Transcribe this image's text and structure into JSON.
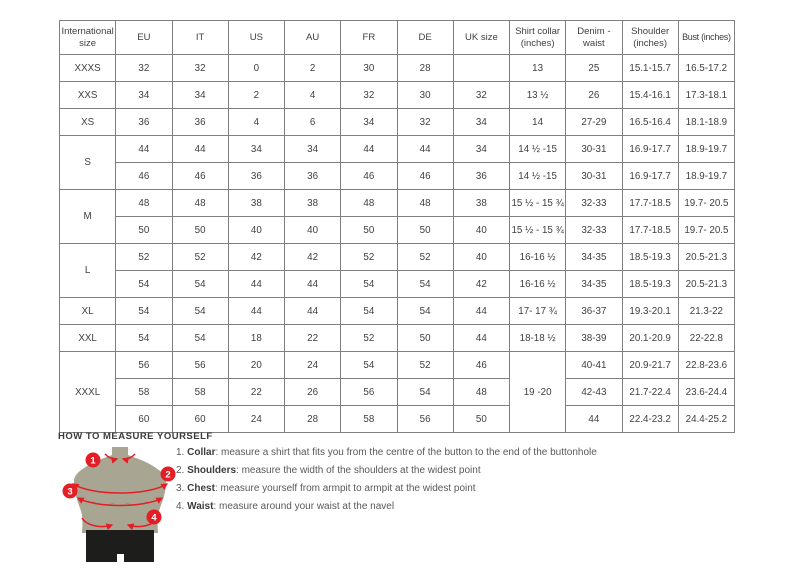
{
  "table": {
    "headers": [
      "International size",
      "EU",
      "IT",
      "US",
      "AU",
      "FR",
      "DE",
      "UK size",
      "Shirt collar (inches)",
      "Denim - waist",
      "Shoulder (inches)",
      "Bust (inches)"
    ],
    "rows": [
      [
        "XXXS",
        "32",
        "32",
        "0",
        "2",
        "30",
        "28",
        "",
        "13",
        "25",
        "15.1-15.7",
        "16.5-17.2"
      ],
      [
        "XXS",
        "34",
        "34",
        "2",
        "4",
        "32",
        "30",
        "32",
        "13 ½",
        "26",
        "15.4-16.1",
        "17.3-18.1"
      ],
      [
        "XS",
        "36",
        "36",
        "4",
        "6",
        "34",
        "32",
        "34",
        "14",
        "27-29",
        "16.5-16.4",
        "18.1-18.9"
      ],
      [
        {
          "text": "S",
          "rowspan": 2
        },
        "44",
        "44",
        "34",
        "34",
        "44",
        "44",
        "34",
        "14 ½ -15",
        "30-31",
        "16.9-17.7",
        "18.9-19.7"
      ],
      [
        "46",
        "46",
        "36",
        "36",
        "46",
        "46",
        "36",
        "14 ½ -15",
        "30-31",
        "16.9-17.7",
        "18.9-19.7"
      ],
      [
        {
          "text": "M",
          "rowspan": 2
        },
        "48",
        "48",
        "38",
        "38",
        "48",
        "48",
        "38",
        "15 ½ - 15 ¾",
        "32-33",
        "17.7-18.5",
        "19.7- 20.5"
      ],
      [
        "50",
        "50",
        "40",
        "40",
        "50",
        "50",
        "40",
        "15 ½ - 15 ¾",
        "32-33",
        "17.7-18.5",
        "19.7- 20.5"
      ],
      [
        {
          "text": "L",
          "rowspan": 2
        },
        "52",
        "52",
        "42",
        "42",
        "52",
        "52",
        "40",
        "16-16 ½",
        "34-35",
        "18.5-19.3",
        "20.5-21.3"
      ],
      [
        "54",
        "54",
        "44",
        "44",
        "54",
        "54",
        "42",
        "16-16 ½",
        "34-35",
        "18.5-19.3",
        "20.5-21.3"
      ],
      [
        "XL",
        "54",
        "54",
        "44",
        "44",
        "54",
        "54",
        "44",
        "17- 17 ¾",
        "36-37",
        "19.3-20.1",
        "21.3-22"
      ],
      [
        "XXL",
        "54",
        "54",
        "18",
        "22",
        "52",
        "50",
        "44",
        "18-18 ½",
        "38-39",
        "20.1-20.9",
        "22-22.8"
      ],
      [
        {
          "text": "XXXL",
          "rowspan": 3
        },
        "56",
        "56",
        "20",
        "24",
        "54",
        "52",
        "46",
        {
          "text": "19 -20",
          "rowspan": 3
        },
        "40-41",
        "20.9-21.7",
        "22.8-23.6"
      ],
      [
        "58",
        "58",
        "22",
        "26",
        "56",
        "54",
        "48",
        "42-43",
        "21.7-22.4",
        "23.6-24.4"
      ],
      [
        "60",
        "60",
        "24",
        "28",
        "58",
        "56",
        "50",
        "44",
        "22.4-23.2",
        "24.4-25.2"
      ]
    ]
  },
  "measure": {
    "heading": "HOW TO MEASURE YOURSELF",
    "steps": [
      {
        "prefix": "1. ",
        "label": "Collar",
        "rest": ": measure a shirt that fits you from the centre of the button to the end of the buttonhole"
      },
      {
        "prefix": "2. ",
        "label": "Shoulders",
        "rest": ": measure the width of the shoulders at the widest point"
      },
      {
        "prefix": "3. ",
        "label": "Chest",
        "rest": ": measure yourself from armpit to armpit at the widest point"
      },
      {
        "prefix": "4. ",
        "label": "Waist",
        "rest": ": measure around your waist at the navel"
      }
    ],
    "figure_markers": [
      "1",
      "2",
      "3",
      "4"
    ]
  },
  "colors": {
    "accent_red": "#e31e24",
    "mannequin_body": "#a9a593",
    "mannequin_contour": "#97937f",
    "mannequin_shorts": "#1d1d1b",
    "table_border": "#7f7f7f",
    "text": "#3f3f3f"
  }
}
